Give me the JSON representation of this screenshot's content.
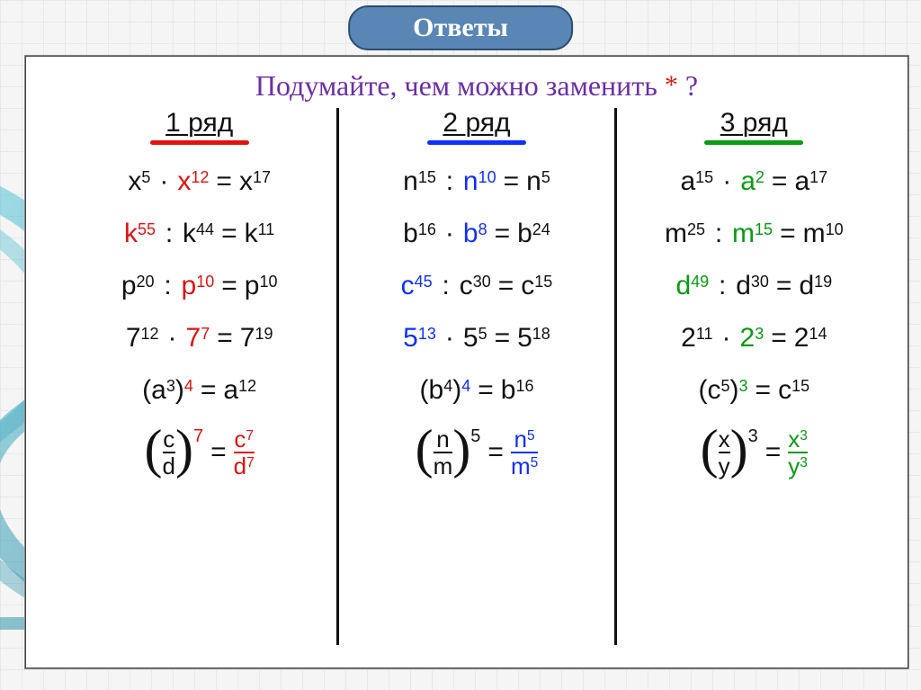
{
  "header": "Ответы",
  "question_prefix": "Подумайте, чем можно заменить ",
  "question_mark": "*",
  "question_suffix": " ?",
  "colors": {
    "red": "#e01212",
    "blue": "#1030ff",
    "green": "#0a9a14",
    "purple": "#6a2fa8",
    "black": "#111"
  },
  "columns": [
    {
      "title": "1 ряд",
      "underline_color": "#e01212",
      "accent": "#e01212",
      "rows": [
        {
          "a_base": "x",
          "a_exp": "5",
          "op": "·",
          "b_base": "x",
          "b_exp": "12",
          "r_base": "x",
          "r_exp": "17",
          "b_color": "#e01212"
        },
        {
          "a_base": "k",
          "a_exp": "55",
          "op": ":",
          "b_base": "k",
          "b_exp": "44",
          "r_base": "k",
          "r_exp": "11",
          "a_color": "#e01212"
        },
        {
          "a_base": "p",
          "a_exp": "20",
          "op": ":",
          "b_base": "p",
          "b_exp": "10",
          "r_base": "p",
          "r_exp": "10",
          "b_color": "#e01212"
        },
        {
          "a_base": "7",
          "a_exp": "12",
          "op": "·",
          "b_base": "7",
          "b_exp": "7",
          "r_base": "7",
          "r_exp": "19",
          "b_color": "#e01212"
        },
        {
          "paren_base": "a",
          "paren_inner_exp": "3",
          "paren_outer_exp": "4",
          "r_base": "a",
          "r_exp": "12",
          "outer_color": "#e01212"
        }
      ],
      "frac": {
        "num": "c",
        "den": "d",
        "outer_exp": "7",
        "r_num": "c",
        "r_num_exp": "7",
        "r_den": "d",
        "r_den_exp": "7",
        "outer_color": "#e01212",
        "r_color": "#e01212"
      }
    },
    {
      "title": "2  ряд",
      "underline_color": "#1030ff",
      "accent": "#1030ff",
      "rows": [
        {
          "a_base": "n",
          "a_exp": "15",
          "op": ":",
          "b_base": "n",
          "b_exp": "10",
          "r_base": "n",
          "r_exp": "5",
          "b_color": "#1030ff"
        },
        {
          "a_base": "b",
          "a_exp": "16",
          "op": "·",
          "b_base": "b",
          "b_exp": "8",
          "r_base": "b",
          "r_exp": "24",
          "b_color": "#1030ff"
        },
        {
          "a_base": "c",
          "a_exp": "45",
          "op": ":",
          "b_base": "c",
          "b_exp": "30",
          "r_base": "c",
          "r_exp": "15",
          "a_color": "#1030ff"
        },
        {
          "a_base": "5",
          "a_exp": "13",
          "op": "·",
          "b_base": "5",
          "b_exp": "5",
          "r_base": "5",
          "r_exp": "18",
          "a_color": "#1030ff"
        },
        {
          "paren_base": "b",
          "paren_inner_exp": "4",
          "paren_outer_exp": "4",
          "r_base": "b",
          "r_exp": "16",
          "outer_color": "#1030ff"
        }
      ],
      "frac": {
        "num": "n",
        "den": "m",
        "outer_exp": "5",
        "r_num": "n",
        "r_num_exp": "5",
        "r_den": "m",
        "r_den_exp": "5",
        "outer_color": "#111",
        "r_color": "#1030ff"
      }
    },
    {
      "title": "3 ряд",
      "underline_color": "#0a9a14",
      "accent": "#0a9a14",
      "rows": [
        {
          "a_base": "a",
          "a_exp": "15",
          "op": "·",
          "b_base": "a",
          "b_exp": "2",
          "r_base": "a",
          "r_exp": "17",
          "b_color": "#0a9a14"
        },
        {
          "a_base": "m",
          "a_exp": "25",
          "op": ":",
          "b_base": "m",
          "b_exp": "15",
          "r_base": "m",
          "r_exp": "10",
          "b_color": "#0a9a14"
        },
        {
          "a_base": "d",
          "a_exp": "49",
          "op": ":",
          "b_base": "d",
          "b_exp": "30",
          "r_base": "d",
          "r_exp": "19",
          "a_color": "#0a9a14"
        },
        {
          "a_base": "2",
          "a_exp": "11",
          "op": "·",
          "b_base": "2",
          "b_exp": "3",
          "r_base": "2",
          "r_exp": "14",
          "b_color": "#0a9a14"
        },
        {
          "paren_base": "c",
          "paren_inner_exp": "5",
          "paren_outer_exp": "3",
          "r_base": "c",
          "r_exp": "15",
          "outer_color": "#0a9a14"
        }
      ],
      "frac": {
        "num": "x",
        "den": "y",
        "outer_exp": "3",
        "r_num": "x",
        "r_num_exp": "3",
        "r_den": "y",
        "r_den_exp": "3",
        "outer_color": "#111",
        "r_color": "#0a9a14"
      }
    }
  ]
}
